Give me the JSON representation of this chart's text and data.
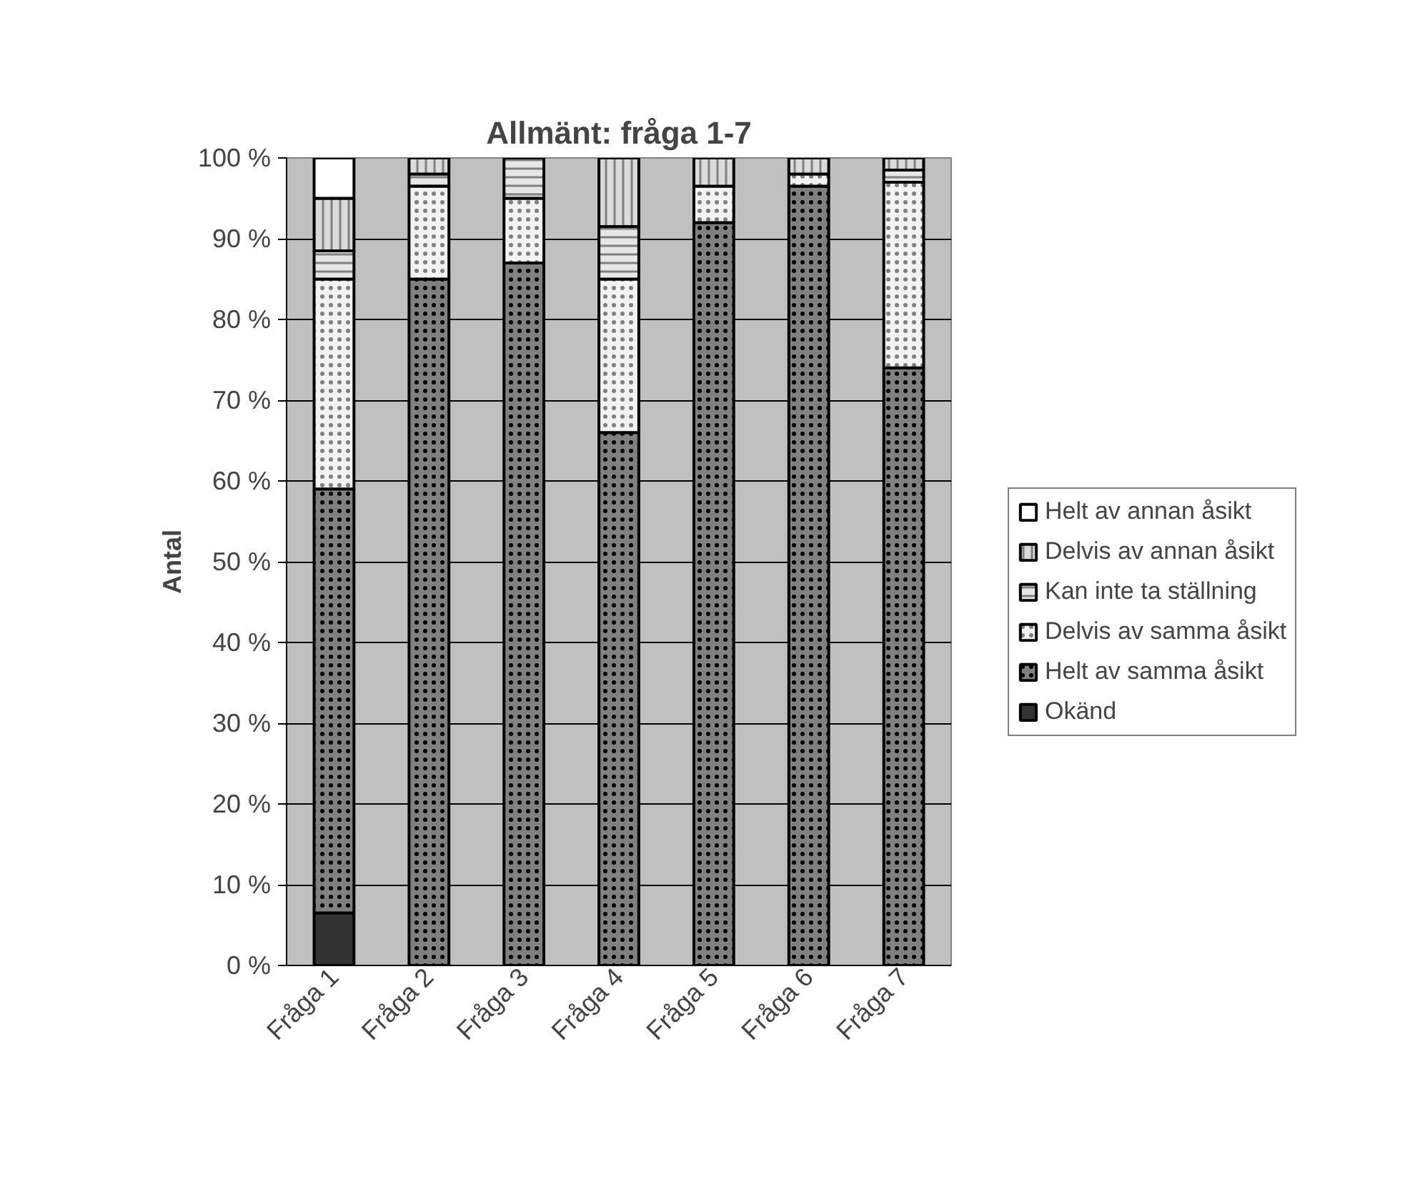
{
  "chart_data": {
    "type": "bar",
    "stacked": true,
    "title": "Allmänt: fråga 1-7",
    "ylabel": "Antal",
    "categories": [
      "Fråga 1",
      "Fråga 2",
      "Fråga 3",
      "Fråga 4",
      "Fråga 5",
      "Fråga 6",
      "Fråga 7"
    ],
    "series": [
      {
        "name": "Okänd",
        "color": "#333333",
        "values": [
          6.5,
          0,
          0,
          0,
          0,
          0,
          0
        ]
      },
      {
        "name": "Helt av samma åsikt",
        "color": "#808080",
        "values": [
          52.5,
          85,
          87,
          66,
          92,
          96.5,
          74
        ]
      },
      {
        "name": "Delvis av samma åsikt",
        "color": "#f2f2f2",
        "values": [
          26,
          11.5,
          8,
          19,
          4.5,
          1.5,
          23
        ]
      },
      {
        "name": "Kan inte ta ställning",
        "color": "#e6e6e6",
        "values": [
          3.5,
          1.5,
          5,
          6.5,
          0,
          0,
          1.5
        ]
      },
      {
        "name": "Delvis av annan åsikt",
        "color": "#dadada",
        "values": [
          6.5,
          2,
          0,
          8.5,
          3.5,
          2,
          1.5
        ]
      },
      {
        "name": "Helt av annan åsikt",
        "color": "#ffffff",
        "values": [
          5,
          0,
          0,
          0,
          0,
          0,
          0
        ]
      }
    ],
    "ylim": [
      0,
      100
    ],
    "yticks": [
      {
        "value": 0,
        "label": "0 %"
      },
      {
        "value": 10,
        "label": "10 %"
      },
      {
        "value": 20,
        "label": "20 %"
      },
      {
        "value": 30,
        "label": "30 %"
      },
      {
        "value": 40,
        "label": "40 %"
      },
      {
        "value": 50,
        "label": "50 %"
      },
      {
        "value": 60,
        "label": "60 %"
      },
      {
        "value": 70,
        "label": "70 %"
      },
      {
        "value": 80,
        "label": "80 %"
      },
      {
        "value": 90,
        "label": "90 %"
      },
      {
        "value": 100,
        "label": "100 %"
      }
    ],
    "grid": "y",
    "legend": "right"
  }
}
